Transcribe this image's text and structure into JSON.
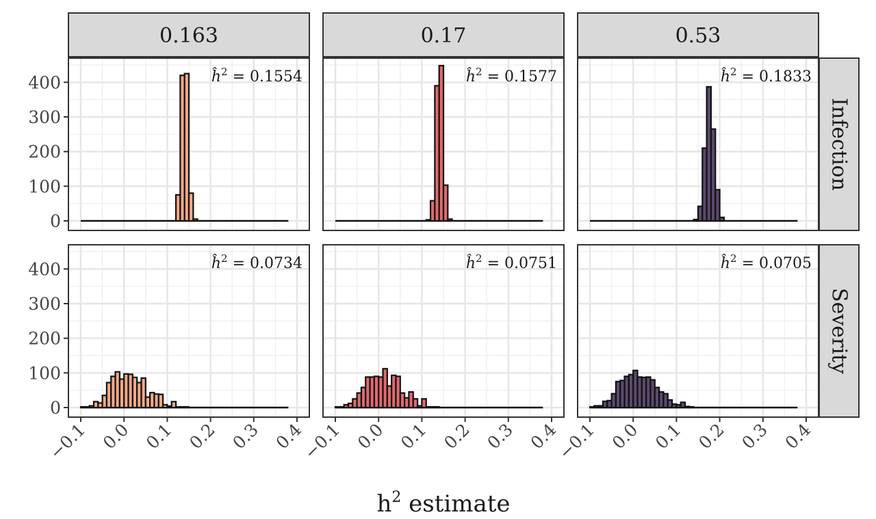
{
  "chart_data": {
    "type": "bar",
    "subtype": "faceted-histogram",
    "xlabel_main": "h",
    "xlabel_sup": "2",
    "xlabel_rest": " estimate",
    "ylabel": "",
    "xlim": [
      -0.1,
      0.4
    ],
    "ylim": [
      0,
      450
    ],
    "x_ticks": [
      -0.1,
      0.0,
      0.1,
      0.2,
      0.3,
      0.4
    ],
    "x_tick_labels": [
      "−0.1",
      "0.0",
      "0.1",
      "0.2",
      "0.3",
      "0.4"
    ],
    "y_ticks": [
      0,
      100,
      200,
      300,
      400
    ],
    "y_tick_labels": [
      "0",
      "100",
      "200",
      "300",
      "400"
    ],
    "bin_width": 0.01,
    "bin_start": -0.1,
    "grid": true,
    "columns": [
      "0.163",
      "0.17",
      "0.53"
    ],
    "rows": [
      "Infection",
      "Severity"
    ],
    "colors": [
      "#f0a986",
      "#e06a6f",
      "#5a4a6e"
    ],
    "panels": [
      {
        "row": "Infection",
        "column": "0.163",
        "annotation_value": "0.1554",
        "bins": [
          {
            "x": 0.12,
            "count": 75
          },
          {
            "x": 0.13,
            "count": 420
          },
          {
            "x": 0.14,
            "count": 425
          },
          {
            "x": 0.15,
            "count": 80
          },
          {
            "x": 0.16,
            "count": 5
          }
        ]
      },
      {
        "row": "Infection",
        "column": "0.17",
        "annotation_value": "0.1577",
        "bins": [
          {
            "x": 0.11,
            "count": 3
          },
          {
            "x": 0.12,
            "count": 58
          },
          {
            "x": 0.13,
            "count": 390
          },
          {
            "x": 0.14,
            "count": 448
          },
          {
            "x": 0.15,
            "count": 103
          },
          {
            "x": 0.16,
            "count": 5
          }
        ]
      },
      {
        "row": "Infection",
        "column": "0.53",
        "annotation_value": "0.1833",
        "bins": [
          {
            "x": 0.14,
            "count": 4
          },
          {
            "x": 0.15,
            "count": 42
          },
          {
            "x": 0.16,
            "count": 210
          },
          {
            "x": 0.17,
            "count": 387
          },
          {
            "x": 0.18,
            "count": 265
          },
          {
            "x": 0.19,
            "count": 90
          },
          {
            "x": 0.2,
            "count": 10
          }
        ]
      },
      {
        "row": "Severity",
        "column": "0.163",
        "annotation_value": "0.0734",
        "bins": [
          {
            "x": -0.1,
            "count": 2
          },
          {
            "x": -0.09,
            "count": 2
          },
          {
            "x": -0.08,
            "count": 5
          },
          {
            "x": -0.07,
            "count": 17
          },
          {
            "x": -0.06,
            "count": 13
          },
          {
            "x": -0.05,
            "count": 35
          },
          {
            "x": -0.04,
            "count": 72
          },
          {
            "x": -0.03,
            "count": 90
          },
          {
            "x": -0.02,
            "count": 103
          },
          {
            "x": -0.01,
            "count": 82
          },
          {
            "x": 0.0,
            "count": 97
          },
          {
            "x": 0.01,
            "count": 96
          },
          {
            "x": 0.02,
            "count": 87
          },
          {
            "x": 0.03,
            "count": 72
          },
          {
            "x": 0.04,
            "count": 85
          },
          {
            "x": 0.05,
            "count": 30
          },
          {
            "x": 0.06,
            "count": 43
          },
          {
            "x": 0.07,
            "count": 39
          },
          {
            "x": 0.08,
            "count": 38
          },
          {
            "x": 0.09,
            "count": 8
          },
          {
            "x": 0.1,
            "count": 4
          },
          {
            "x": 0.11,
            "count": 17
          },
          {
            "x": 0.12,
            "count": 2
          },
          {
            "x": 0.13,
            "count": 2
          },
          {
            "x": 0.14,
            "count": 2
          }
        ]
      },
      {
        "row": "Severity",
        "column": "0.17",
        "annotation_value": "0.0751",
        "bins": [
          {
            "x": -0.1,
            "count": 2
          },
          {
            "x": -0.09,
            "count": 2
          },
          {
            "x": -0.08,
            "count": 8
          },
          {
            "x": -0.07,
            "count": 12
          },
          {
            "x": -0.06,
            "count": 25
          },
          {
            "x": -0.05,
            "count": 42
          },
          {
            "x": -0.04,
            "count": 58
          },
          {
            "x": -0.03,
            "count": 88
          },
          {
            "x": -0.02,
            "count": 88
          },
          {
            "x": -0.01,
            "count": 90
          },
          {
            "x": 0.0,
            "count": 88
          },
          {
            "x": 0.01,
            "count": 112
          },
          {
            "x": 0.02,
            "count": 62
          },
          {
            "x": 0.03,
            "count": 93
          },
          {
            "x": 0.04,
            "count": 90
          },
          {
            "x": 0.05,
            "count": 42
          },
          {
            "x": 0.06,
            "count": 28
          },
          {
            "x": 0.07,
            "count": 45
          },
          {
            "x": 0.08,
            "count": 25
          },
          {
            "x": 0.09,
            "count": 5
          },
          {
            "x": 0.1,
            "count": 25
          },
          {
            "x": 0.11,
            "count": 2
          },
          {
            "x": 0.12,
            "count": 2
          },
          {
            "x": 0.13,
            "count": 2
          }
        ]
      },
      {
        "row": "Severity",
        "column": "0.53",
        "annotation_value": "0.0705",
        "bins": [
          {
            "x": -0.1,
            "count": 2
          },
          {
            "x": -0.09,
            "count": 5
          },
          {
            "x": -0.08,
            "count": 5
          },
          {
            "x": -0.07,
            "count": 18
          },
          {
            "x": -0.06,
            "count": 20
          },
          {
            "x": -0.05,
            "count": 40
          },
          {
            "x": -0.04,
            "count": 75
          },
          {
            "x": -0.03,
            "count": 78
          },
          {
            "x": -0.02,
            "count": 90
          },
          {
            "x": -0.01,
            "count": 95
          },
          {
            "x": 0.0,
            "count": 107
          },
          {
            "x": 0.01,
            "count": 88
          },
          {
            "x": 0.02,
            "count": 87
          },
          {
            "x": 0.03,
            "count": 88
          },
          {
            "x": 0.04,
            "count": 80
          },
          {
            "x": 0.05,
            "count": 58
          },
          {
            "x": 0.06,
            "count": 45
          },
          {
            "x": 0.07,
            "count": 40
          },
          {
            "x": 0.08,
            "count": 22
          },
          {
            "x": 0.09,
            "count": 10
          },
          {
            "x": 0.1,
            "count": 8
          },
          {
            "x": 0.11,
            "count": 15
          },
          {
            "x": 0.12,
            "count": 3
          },
          {
            "x": 0.13,
            "count": 2
          }
        ]
      }
    ]
  }
}
